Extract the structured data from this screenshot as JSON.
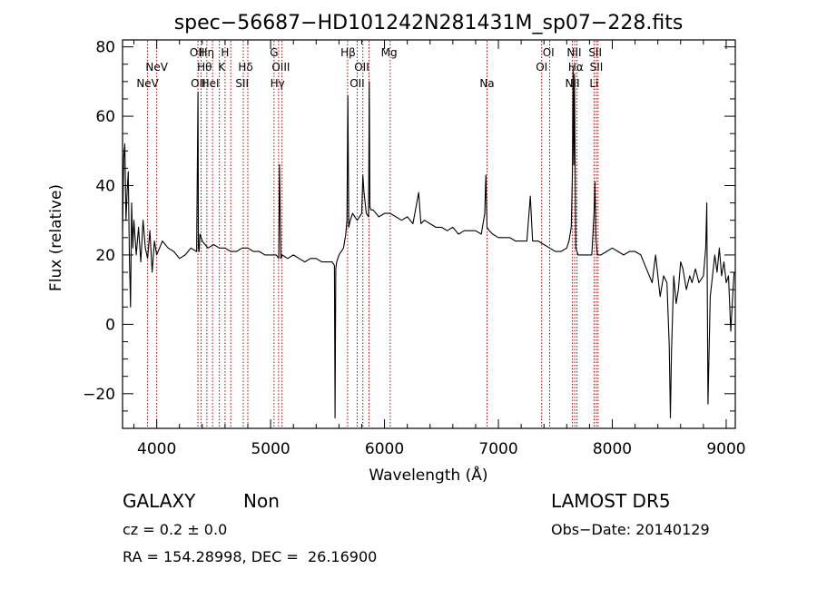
{
  "chart_data": {
    "type": "line",
    "title": "spec−56687−HD101242N281431M_sp07−228.fits",
    "xlabel": "Wavelength (Å)",
    "ylabel": "Flux (relative)",
    "xlim": [
      3700,
      9080
    ],
    "ylim": [
      -30,
      82
    ],
    "xticks": [
      4000,
      5000,
      6000,
      7000,
      8000,
      9000
    ],
    "xtick_labels": [
      "4000",
      "5000",
      "6000",
      "7000",
      "8000",
      "9000"
    ],
    "yticks": [
      0,
      20,
      40,
      60,
      80
    ],
    "ytick_labels": [
      "0",
      "20",
      "40",
      "60",
      "80"
    ],
    "yticks_negative": [
      -20
    ],
    "ytick_negative_labels": [
      "−20"
    ],
    "line_color": "#000000",
    "marker_color": "#aa0000",
    "series": [
      {
        "x": [
          3700,
          3710,
          3720,
          3730,
          3740,
          3750,
          3760,
          3770,
          3780,
          3790,
          3800,
          3820,
          3840,
          3860,
          3880,
          3900,
          3920,
          3940,
          3960,
          3980,
          4000,
          4050,
          4100,
          4150,
          4200,
          4250,
          4300,
          4350,
          4362,
          4366,
          4372,
          4380,
          4400,
          4450,
          4500,
          4550,
          4600,
          4650,
          4700,
          4750,
          4800,
          4850,
          4900,
          4950,
          5000,
          5050,
          5072,
          5078,
          5090,
          5100,
          5150,
          5200,
          5250,
          5300,
          5350,
          5400,
          5450,
          5500,
          5540,
          5560,
          5566,
          5572,
          5580,
          5600,
          5620,
          5640,
          5660,
          5670,
          5678,
          5686,
          5700,
          5720,
          5740,
          5760,
          5780,
          5800,
          5810,
          5820,
          5840,
          5860,
          5866,
          5872,
          5880,
          5900,
          5950,
          6000,
          6050,
          6100,
          6150,
          6200,
          6250,
          6300,
          6320,
          6350,
          6400,
          6450,
          6500,
          6550,
          6600,
          6650,
          6700,
          6750,
          6800,
          6850,
          6880,
          6890,
          6900,
          6920,
          6950,
          7000,
          7050,
          7100,
          7150,
          7200,
          7250,
          7280,
          7300,
          7350,
          7400,
          7450,
          7500,
          7550,
          7600,
          7620,
          7640,
          7650,
          7656,
          7662,
          7668,
          7680,
          7700,
          7720,
          7750,
          7800,
          7820,
          7840,
          7848,
          7856,
          7870,
          7900,
          7950,
          8000,
          8050,
          8100,
          8150,
          8200,
          8250,
          8300,
          8350,
          8380,
          8420,
          8450,
          8480,
          8500,
          8510,
          8520,
          8540,
          8560,
          8580,
          8600,
          8620,
          8650,
          8680,
          8700,
          8730,
          8760,
          8800,
          8820,
          8830,
          8840,
          8860,
          8880,
          8900,
          8920,
          8940,
          8960,
          8980,
          9000,
          9020,
          9040,
          9060,
          9070
        ],
        "y": [
          27,
          48,
          52,
          30,
          38,
          44,
          20,
          5,
          35,
          22,
          30,
          20,
          28,
          18,
          30,
          22,
          19,
          27,
          15,
          24,
          20,
          24,
          22,
          21,
          19,
          20,
          22,
          21,
          67,
          22,
          21,
          26,
          24,
          22,
          23,
          22,
          22,
          21,
          21,
          22,
          22,
          21,
          21,
          20,
          20,
          20,
          19,
          46,
          19,
          20,
          19,
          20,
          19,
          18,
          19,
          19,
          18,
          18,
          18,
          17,
          -27,
          16,
          18,
          20,
          21,
          22,
          26,
          30,
          66,
          28,
          30,
          32,
          31,
          30,
          31,
          32,
          43,
          38,
          32,
          31,
          70,
          34,
          33,
          33,
          31,
          32,
          32,
          31,
          30,
          31,
          29,
          38,
          29,
          30,
          29,
          28,
          28,
          27,
          28,
          26,
          27,
          27,
          27,
          26,
          32,
          43,
          28,
          27,
          26,
          25,
          25,
          25,
          24,
          24,
          24,
          37,
          24,
          24,
          23,
          22,
          21,
          21,
          22,
          24,
          28,
          44,
          74,
          46,
          72,
          22,
          20,
          20,
          20,
          20,
          20,
          32,
          41,
          25,
          20,
          20,
          21,
          22,
          21,
          20,
          21,
          21,
          20,
          16,
          12,
          20,
          8,
          14,
          12,
          -6,
          -27,
          -8,
          14,
          6,
          10,
          18,
          16,
          10,
          14,
          12,
          16,
          12,
          14,
          22,
          35,
          -23,
          8,
          14,
          20,
          15,
          22,
          14,
          18,
          12,
          14,
          -2,
          10,
          15
        ]
      }
    ],
    "line_markers": [
      {
        "label": "NeV",
        "x": 3920,
        "row": 3
      },
      {
        "label": "NeV",
        "x": 4000,
        "row": 2
      },
      {
        "label": "OII",
        "x": 4355,
        "row": 1
      },
      {
        "label": "OII",
        "x": 4365,
        "row": 3
      },
      {
        "label": "Hη",
        "x": 4440,
        "row": 1
      },
      {
        "label": "Hθ",
        "x": 4420,
        "row": 2
      },
      {
        "label": "HeI",
        "x": 4470,
        "row": 3
      },
      {
        "label": "H",
        "x": 4600,
        "row": 1
      },
      {
        "label": "K",
        "x": 4570,
        "row": 2
      },
      {
        "label": "Hδ",
        "x": 4780,
        "row": 2
      },
      {
        "label": "SII",
        "x": 4750,
        "row": 3
      },
      {
        "label": "G",
        "x": 5030,
        "row": 1
      },
      {
        "label": "OIII",
        "x": 5090,
        "row": 2
      },
      {
        "label": "Hγ",
        "x": 5060,
        "row": 3
      },
      {
        "label": "Hβ",
        "x": 5680,
        "row": 1
      },
      {
        "label": "OII",
        "x": 5800,
        "row": 2
      },
      {
        "label": "OII",
        "x": 5760,
        "row": 3
      },
      {
        "label": "Mg",
        "x": 6040,
        "row": 1
      },
      {
        "label": "Na",
        "x": 6900,
        "row": 3
      },
      {
        "label": "OI",
        "x": 7440,
        "row": 1
      },
      {
        "label": "OI",
        "x": 7380,
        "row": 2
      },
      {
        "label": "NII",
        "x": 7665,
        "row": 1
      },
      {
        "label": "Hα",
        "x": 7680,
        "row": 2
      },
      {
        "label": "NII",
        "x": 7650,
        "row": 3
      },
      {
        "label": "SII",
        "x": 7850,
        "row": 1
      },
      {
        "label": "SII",
        "x": 7860,
        "row": 2
      },
      {
        "label": "Li",
        "x": 7840,
        "row": 3
      }
    ],
    "marker_lines_x": [
      3920,
      4000,
      4362,
      4390,
      4440,
      4490,
      4550,
      4600,
      4650,
      4760,
      4800,
      5030,
      5070,
      5100,
      5676,
      5760,
      5810,
      5864,
      6050,
      6900,
      7380,
      7450,
      7650,
      7670,
      7690,
      7840,
      7860,
      7875
    ]
  },
  "info": {
    "object_class": "GALAXY",
    "subclass": "Non",
    "survey": "LAMOST DR5",
    "redshift": "cz = 0.2 ± 0.0",
    "obs_date": "Obs−Date: 20140129",
    "coords": "RA = 154.28998, DEC =  26.16900"
  }
}
